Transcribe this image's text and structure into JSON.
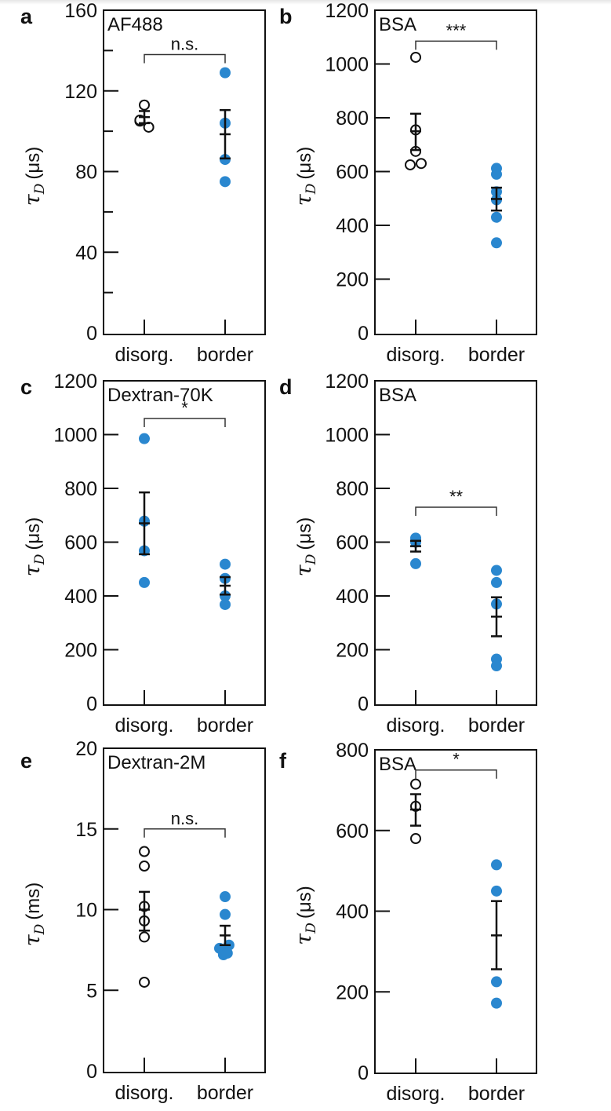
{
  "figure": {
    "marker_colors": {
      "filled": "#2a87cf",
      "open_stroke": "#111111",
      "axis": "#111111",
      "bracket": "#333333"
    }
  },
  "chart_data": [
    {
      "panel": "a",
      "type": "scatter",
      "title": "AF488",
      "ylabel_symbol": "τ",
      "ylabel_subscript": "D",
      "ylabel_unit": "(μs)",
      "categories": [
        "disorg.",
        "border"
      ],
      "ylim": [
        0,
        160
      ],
      "yticks_labeled": [
        0,
        40,
        80,
        120,
        160
      ],
      "yticks_minor": [
        20,
        60,
        100,
        140
      ],
      "significance": {
        "label": "n.s.",
        "bracket_y": 138
      },
      "series": [
        {
          "category": "disorg.",
          "marker": "open",
          "values": [
            113,
            105,
            102,
            105.5
          ],
          "offsets": [
            0,
            -0.4,
            0.4,
            -0.4
          ],
          "mean": 107,
          "err_low": 104,
          "err_high": 110
        },
        {
          "category": "border",
          "marker": "filled",
          "values": [
            129,
            104,
            86,
            75
          ],
          "offsets": [
            0,
            0,
            0,
            0
          ],
          "mean": 98.5,
          "err_low": 86.5,
          "err_high": 110.5
        }
      ]
    },
    {
      "panel": "b",
      "type": "scatter",
      "title": "BSA",
      "ylabel_symbol": "τ",
      "ylabel_subscript": "D",
      "ylabel_unit": "(μs)",
      "categories": [
        "disorg.",
        "border"
      ],
      "ylim": [
        0,
        1200
      ],
      "yticks_labeled": [
        0,
        200,
        400,
        600,
        800,
        1000,
        1200
      ],
      "yticks_minor": [],
      "significance": {
        "label": "***",
        "bracket_y": 1085
      },
      "series": [
        {
          "category": "disorg.",
          "marker": "open",
          "values": [
            1025,
            755,
            675,
            625,
            630
          ],
          "offsets": [
            0,
            0,
            0,
            -0.5,
            0.5
          ],
          "mean": 750,
          "err_low": 680,
          "err_high": 815
        },
        {
          "category": "border",
          "marker": "filled",
          "values": [
            612,
            590,
            525,
            495,
            430,
            335
          ],
          "offsets": [
            0,
            0,
            0,
            0,
            0,
            0
          ],
          "mean": 498,
          "err_low": 455,
          "err_high": 540
        }
      ]
    },
    {
      "panel": "c",
      "type": "scatter",
      "title": "Dextran-70K",
      "ylabel_symbol": "τ",
      "ylabel_subscript": "D",
      "ylabel_unit": "(μs)",
      "categories": [
        "disorg.",
        "border"
      ],
      "ylim": [
        0,
        1200
      ],
      "yticks_labeled": [
        0,
        200,
        400,
        600,
        800,
        1000,
        1200
      ],
      "yticks_minor": [],
      "significance": {
        "label": "*",
        "bracket_y": 1060
      },
      "series": [
        {
          "category": "disorg.",
          "marker": "filled",
          "values": [
            985,
            678,
            568,
            450
          ],
          "offsets": [
            0,
            0,
            0,
            0
          ],
          "mean": 670,
          "err_low": 555,
          "err_high": 785
        },
        {
          "category": "border",
          "marker": "filled",
          "values": [
            518,
            465,
            400,
            368
          ],
          "offsets": [
            0,
            0,
            0,
            0
          ],
          "mean": 438,
          "err_low": 405,
          "err_high": 470
        }
      ]
    },
    {
      "panel": "d",
      "type": "scatter",
      "title": "BSA",
      "ylabel_symbol": "τ",
      "ylabel_subscript": "D",
      "ylabel_unit": "(μs)",
      "categories": [
        "disorg.",
        "border"
      ],
      "ylim": [
        0,
        1200
      ],
      "yticks_labeled": [
        0,
        200,
        400,
        600,
        800,
        1000,
        1200
      ],
      "yticks_minor": [],
      "significance": {
        "label": "**",
        "bracket_y": 730
      },
      "series": [
        {
          "category": "disorg.",
          "marker": "filled",
          "values": [
            615,
            600,
            520
          ],
          "offsets": [
            0,
            0,
            0
          ],
          "mean": 585,
          "err_low": 565,
          "err_high": 605
        },
        {
          "category": "border",
          "marker": "filled",
          "values": [
            495,
            450,
            370,
            165,
            140
          ],
          "offsets": [
            0,
            0,
            0,
            0,
            0
          ],
          "mean": 323,
          "err_low": 250,
          "err_high": 395
        }
      ]
    },
    {
      "panel": "e",
      "type": "scatter",
      "title": "Dextran-2M",
      "ylabel_symbol": "τ",
      "ylabel_subscript": "D",
      "ylabel_unit": "(ms)",
      "categories": [
        "disorg.",
        "border"
      ],
      "ylim": [
        0,
        20
      ],
      "yticks_labeled": [
        0,
        5,
        10,
        15,
        20
      ],
      "yticks_minor": [],
      "significance": {
        "label": "n.s.",
        "bracket_y": 15
      },
      "series": [
        {
          "category": "disorg.",
          "marker": "open",
          "values": [
            13.6,
            12.7,
            10.2,
            9.3,
            8.3,
            5.5
          ],
          "offsets": [
            0,
            0,
            0,
            0,
            0,
            0
          ],
          "mean": 10.0,
          "err_low": 8.7,
          "err_high": 11.1
        },
        {
          "category": "border",
          "marker": "filled",
          "values": [
            10.8,
            9.7,
            7.8,
            7.6,
            7.5,
            7.2,
            7.3
          ],
          "offsets": [
            0,
            0,
            0.35,
            -0.5,
            0.1,
            -0.15,
            0.2
          ],
          "mean": 8.4,
          "err_low": 7.8,
          "err_high": 9.0
        }
      ]
    },
    {
      "panel": "f",
      "type": "scatter",
      "title": "BSA",
      "ylabel_symbol": "τ",
      "ylabel_subscript": "D",
      "ylabel_unit": "(μs)",
      "categories": [
        "disorg.",
        "border"
      ],
      "ylim": [
        0,
        800
      ],
      "yticks_labeled": [
        0,
        200,
        400,
        600,
        800
      ],
      "yticks_minor": [],
      "significance": {
        "label": "*",
        "bracket_y": 750
      },
      "series": [
        {
          "category": "disorg.",
          "marker": "open",
          "values": [
            715,
            660,
            580
          ],
          "offsets": [
            0,
            0,
            0
          ],
          "mean": 652,
          "err_low": 612,
          "err_high": 690
        },
        {
          "category": "border",
          "marker": "filled",
          "values": [
            515,
            450,
            225,
            172
          ],
          "offsets": [
            0,
            0,
            0,
            0
          ],
          "mean": 340,
          "err_low": 256,
          "err_high": 425
        }
      ]
    }
  ]
}
